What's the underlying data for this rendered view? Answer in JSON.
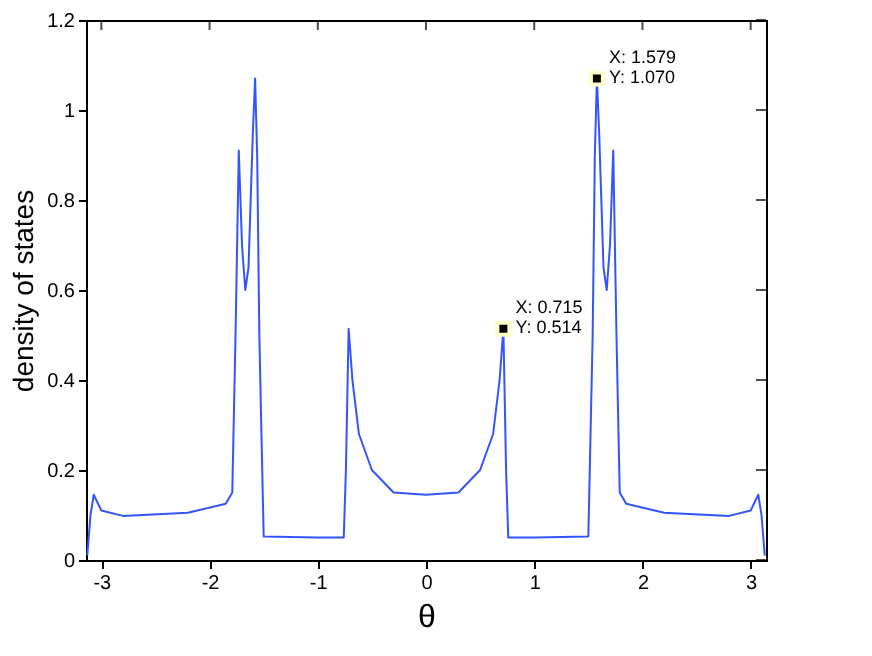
{
  "chart_data": {
    "type": "line",
    "xlabel": "θ",
    "ylabel": "density of states",
    "x": [
      -3.13,
      -3.1,
      -3.07,
      -3.0,
      -2.8,
      -2.2,
      -1.85,
      -1.79,
      -1.76,
      -1.73,
      -1.7,
      -1.67,
      -1.64,
      -1.6,
      -1.579,
      -1.56,
      -1.54,
      -1.5,
      -1.0,
      -0.76,
      -0.74,
      -0.715,
      -0.68,
      -0.62,
      -0.5,
      -0.3,
      0,
      0.3,
      0.5,
      0.62,
      0.68,
      0.715,
      0.74,
      0.76,
      1.0,
      1.5,
      1.54,
      1.56,
      1.579,
      1.6,
      1.64,
      1.67,
      1.7,
      1.73,
      1.76,
      1.79,
      1.85,
      2.2,
      2.8,
      3.0,
      3.07,
      3.1,
      3.13
    ],
    "series": [
      {
        "color": "#3355ff",
        "values": [
          0.01,
          0.1,
          0.145,
          0.11,
          0.098,
          0.105,
          0.125,
          0.15,
          0.5,
          0.91,
          0.7,
          0.6,
          0.65,
          0.95,
          1.07,
          0.9,
          0.5,
          0.052,
          0.05,
          0.05,
          0.2,
          0.514,
          0.4,
          0.28,
          0.2,
          0.15,
          0.145,
          0.15,
          0.2,
          0.28,
          0.4,
          0.514,
          0.2,
          0.05,
          0.05,
          0.052,
          0.5,
          0.9,
          1.07,
          0.95,
          0.65,
          0.6,
          0.7,
          0.91,
          0.5,
          0.15,
          0.125,
          0.105,
          0.098,
          0.11,
          0.145,
          0.1,
          0.01
        ]
      }
    ],
    "annotations": [
      {
        "text": "X: 0.715\nY: 0.514",
        "x": 0.715,
        "y": 0.514
      },
      {
        "text": "X: 1.579\nY: 1.070",
        "x": 1.579,
        "y": 1.07
      }
    ],
    "xlim": [
      -3.1416,
      3.1416
    ],
    "xticks": [
      -3,
      -2,
      -1,
      0,
      1,
      2,
      3
    ],
    "ylim": [
      0,
      1.2
    ],
    "yticks": [
      0,
      0.2,
      0.4,
      0.6,
      0.8,
      1,
      1.2
    ],
    "grid": false,
    "marker": "none",
    "line_style": "solid"
  }
}
